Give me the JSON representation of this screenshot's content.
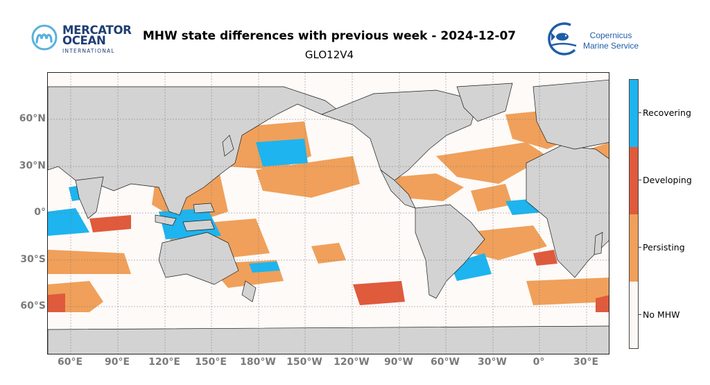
{
  "header": {
    "title": "MHW state differences with previous week - 2024-12-07",
    "subtitle": "GLO12V4"
  },
  "logos": {
    "mercator": {
      "line1": "MERCATOR",
      "line2": "OCEAN",
      "line3": "INTERNATIONAL"
    },
    "copernicus": {
      "line1": "Copernicus",
      "line2": "Marine Service"
    }
  },
  "map": {
    "lat_ticks": [
      "60°N",
      "30°N",
      "0°",
      "30°S",
      "60°S"
    ],
    "lon_ticks": [
      "60°E",
      "90°E",
      "120°E",
      "150°E",
      "180°W",
      "150°W",
      "120°W",
      "90°W",
      "60°W",
      "30°W",
      "0°",
      "30°E"
    ]
  },
  "legend": {
    "categories": [
      {
        "label": "Recovering",
        "color": "#1eb4ef"
      },
      {
        "label": "Developing",
        "color": "#e05a3c"
      },
      {
        "label": "Persisting",
        "color": "#f0a05a"
      },
      {
        "label": "No MHW",
        "color": "#fcf8f6"
      }
    ]
  },
  "colors": {
    "land": "#d3d3d3",
    "ocean": "#fdfaf8",
    "coast": "#1a1a1a"
  }
}
